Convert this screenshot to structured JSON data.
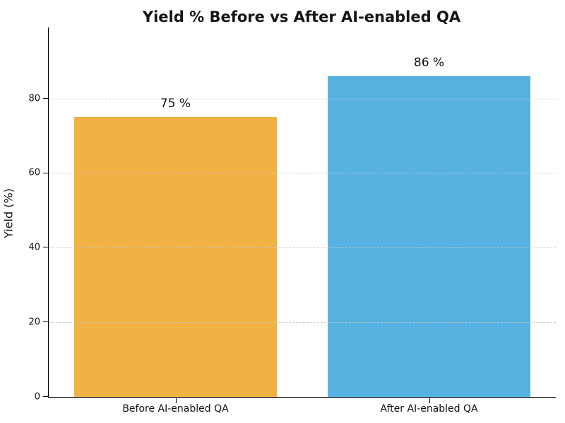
{
  "chart_data": {
    "type": "bar",
    "title": "Yield % Before vs After AI-enabled QA",
    "xlabel": "",
    "ylabel": "Yield (%)",
    "categories": [
      "Before AI-enabled QA",
      "After AI-enabled QA"
    ],
    "values": [
      75,
      86
    ],
    "value_labels": [
      "75 %",
      "86 %"
    ],
    "bar_colors": [
      "#F1B243",
      "#57B1E1"
    ],
    "yticks": [
      0,
      20,
      40,
      60,
      80
    ],
    "ylim": [
      0,
      99
    ],
    "grid": "horizontal-dashed",
    "gridline_color": "#c6c6c6",
    "legend": "none",
    "bar_width_fraction": 0.4
  }
}
